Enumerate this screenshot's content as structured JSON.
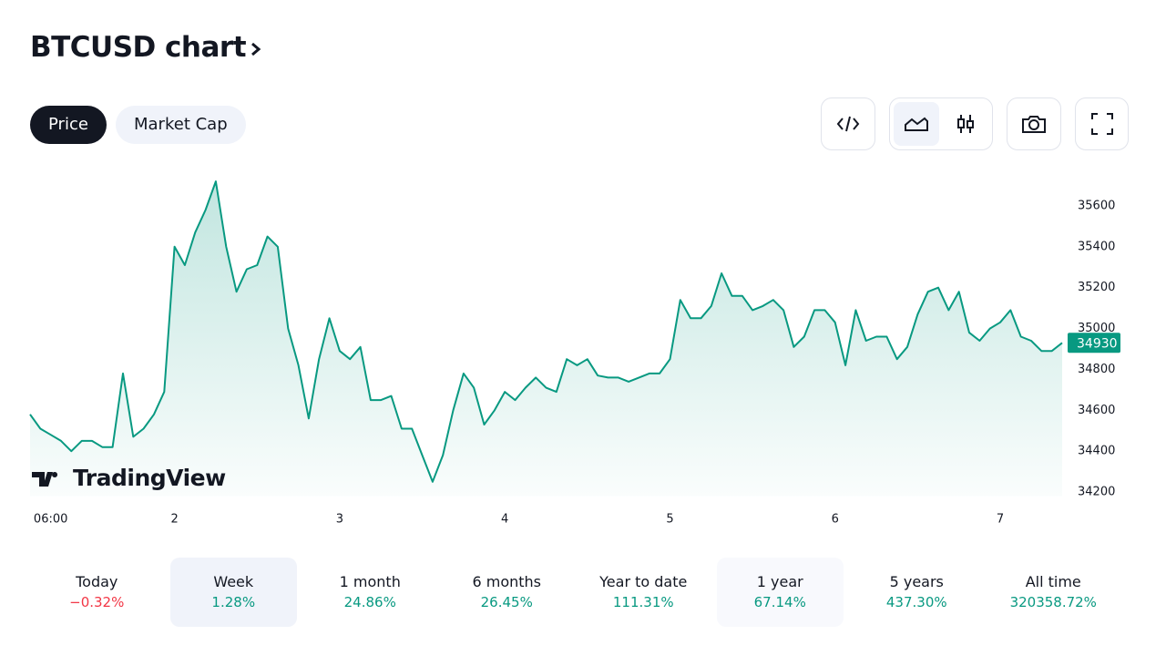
{
  "header": {
    "title": "BTCUSD chart"
  },
  "tabs": [
    "Price",
    "Market Cap"
  ],
  "watermark": "TradingView",
  "chart_data": {
    "type": "line",
    "color": "#089981",
    "values": [
      34580,
      34510,
      34480,
      34450,
      34400,
      34450,
      34450,
      34420,
      34420,
      34780,
      34470,
      34510,
      34580,
      34690,
      35400,
      35310,
      35470,
      35580,
      35720,
      35400,
      35180,
      35290,
      35310,
      35450,
      35400,
      35000,
      34820,
      34560,
      34850,
      35050,
      34890,
      34850,
      34910,
      34650,
      34650,
      34670,
      34510,
      34510,
      34380,
      34250,
      34380,
      34600,
      34780,
      34710,
      34530,
      34600,
      34690,
      34650,
      34710,
      34760,
      34710,
      34690,
      34850,
      34820,
      34850,
      34770,
      34760,
      34760,
      34740,
      34760,
      34780,
      34780,
      34850,
      35140,
      35050,
      35050,
      35110,
      35270,
      35160,
      35160,
      35090,
      35110,
      35140,
      35090,
      34910,
      34960,
      35090,
      35090,
      35030,
      34820,
      35090,
      34940,
      34960,
      34960,
      34850,
      34910,
      35070,
      35180,
      35200,
      35090,
      35180,
      34980,
      34940,
      35000,
      35030,
      35090,
      34960,
      34940,
      34890,
      34890,
      34930
    ],
    "xlim": [
      0,
      100
    ],
    "xticks": [
      {
        "value": 2,
        "label": "06:00"
      },
      {
        "value": 14,
        "label": "2"
      },
      {
        "value": 30,
        "label": "3"
      },
      {
        "value": 46,
        "label": "4"
      },
      {
        "value": 62,
        "label": "5"
      },
      {
        "value": 78,
        "label": "6"
      },
      {
        "value": 94,
        "label": "7"
      }
    ],
    "ylim": [
      34180,
      35780
    ],
    "yticks": [
      34200,
      34400,
      34600,
      34800,
      35000,
      35200,
      35400,
      35600
    ]
  },
  "periods": [
    {
      "label": "Today",
      "change": "−0.32%"
    },
    {
      "label": "Week",
      "change": "1.28%"
    },
    {
      "label": "1 month",
      "change": "24.86%"
    },
    {
      "label": "6 months",
      "change": "26.45%"
    },
    {
      "label": "Year to date",
      "change": "111.31%"
    },
    {
      "label": "1 year",
      "change": "67.14%"
    },
    {
      "label": "5 years",
      "change": "437.30%"
    },
    {
      "label": "All time",
      "change": "320358.72%"
    }
  ]
}
